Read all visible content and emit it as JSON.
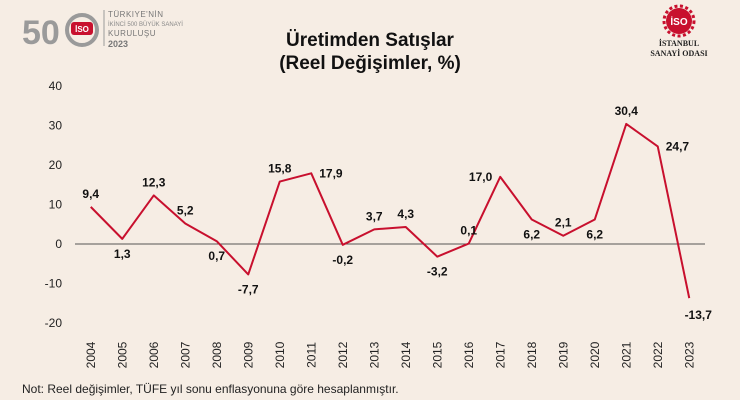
{
  "header": {
    "anniversary_number": "50",
    "anniversary_lines": [
      "TÜRKIYE'NİN",
      "İKİNCİ 500 BÜYÜK SANAYİ",
      "KURULUŞU",
      "2023"
    ],
    "org_line1": "İSTANBUL",
    "org_line2": "SANAYİ ODASI",
    "logo_badge": "İSO"
  },
  "footnote": "Not: Reel değişimler, TÜFE yıl sonu enflasyonuna göre hesaplanmıştır.",
  "colors": {
    "line": "#c8102e",
    "background": "#f6ede4",
    "zero_line": "#555555"
  },
  "chart_data": {
    "type": "line",
    "title_line1": "Üretimden Satışlar",
    "title_line2": "(Reel Değişimler, %)",
    "categories": [
      "2004",
      "2005",
      "2006",
      "2007",
      "2008",
      "2009",
      "2010",
      "2011",
      "2012",
      "2013",
      "2014",
      "2015",
      "2016",
      "2017",
      "2018",
      "2019",
      "2020",
      "2021",
      "2022",
      "2023"
    ],
    "values": [
      9.4,
      1.3,
      12.3,
      5.2,
      0.7,
      -7.7,
      15.8,
      17.9,
      -0.2,
      3.7,
      4.3,
      -3.2,
      0.1,
      17.0,
      6.2,
      2.1,
      6.2,
      30.4,
      24.7,
      -13.7
    ],
    "data_labels": [
      "9,4",
      "1,3",
      "12,3",
      "5,2",
      "0,7",
      "-7,7",
      "15,8",
      "17,9",
      "-0,2",
      "3,7",
      "4,3",
      "-3,2",
      "0,1",
      "17,0",
      "6,2",
      "2,1",
      "6,2",
      "30,4",
      "24,7",
      "-13,7"
    ],
    "label_positions": [
      "above",
      "below",
      "above",
      "above",
      "below",
      "below",
      "above",
      "right",
      "below",
      "above",
      "above",
      "below",
      "above",
      "left",
      "below",
      "above",
      "below",
      "above",
      "right",
      "below"
    ],
    "ylim": [
      -20,
      40
    ],
    "yticks": [
      -20,
      -10,
      0,
      10,
      20,
      30,
      40
    ],
    "ytick_labels": [
      "-20",
      "-10",
      "0",
      "10",
      "20",
      "30",
      "40"
    ],
    "grid": false,
    "legend": "none"
  }
}
